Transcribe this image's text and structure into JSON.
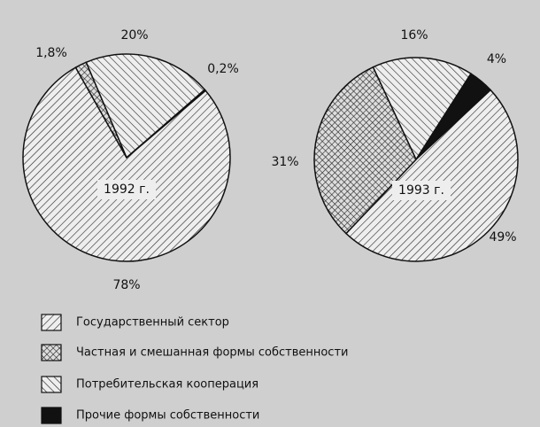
{
  "chart_data": [
    {
      "type": "pie",
      "label": "1992 г.",
      "categories": [
        "Государственный сектор",
        "Частная и смешанная формы собственности",
        "Потребительская кооперация",
        "Прочие формы собственности"
      ],
      "patterns": [
        "hatch-right",
        "crosshatch",
        "hatch-left",
        "solid"
      ],
      "values": [
        78,
        1.8,
        20,
        0.2
      ],
      "value_labels": [
        "78%",
        "1,8%",
        "20%",
        "0,2%"
      ]
    },
    {
      "type": "pie",
      "label": "1993 г.",
      "values": [
        49,
        31,
        16,
        4
      ],
      "value_labels": [
        "49%",
        "31%",
        "16%",
        "4%"
      ]
    }
  ]
}
